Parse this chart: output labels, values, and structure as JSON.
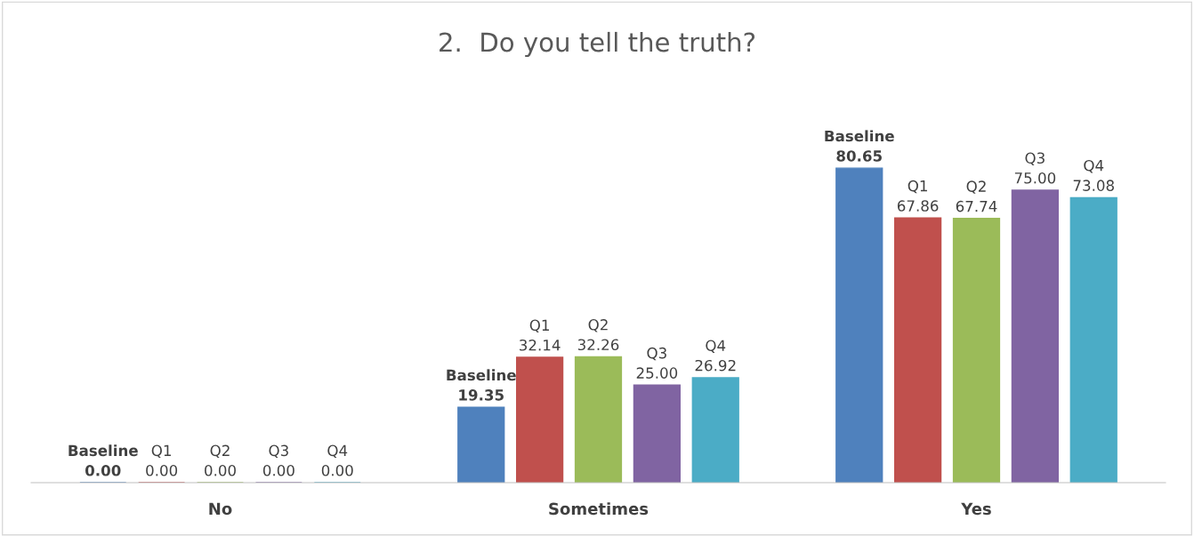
{
  "chart_data": {
    "type": "bar",
    "title": "2.  Do you tell the truth?",
    "categories": [
      "No",
      "Sometimes",
      "Yes"
    ],
    "series": [
      {
        "name": "Baseline",
        "color": "#4f81bd",
        "values": [
          0.0,
          19.35,
          80.65
        ],
        "value_labels": [
          "0.00",
          "19.35",
          "80.65"
        ]
      },
      {
        "name": "Q1",
        "color": "#c0504d",
        "values": [
          0.0,
          32.14,
          67.86
        ],
        "value_labels": [
          "0.00",
          "32.14",
          "67.86"
        ]
      },
      {
        "name": "Q2",
        "color": "#9bbb59",
        "values": [
          0.0,
          32.26,
          67.74
        ],
        "value_labels": [
          "0.00",
          "32.26",
          "67.74"
        ]
      },
      {
        "name": "Q3",
        "color": "#8064a2",
        "values": [
          0.0,
          25.0,
          75.0
        ],
        "value_labels": [
          "0.00",
          "25.00",
          "75.00"
        ]
      },
      {
        "name": "Q4",
        "color": "#4bacc6",
        "values": [
          0.0,
          26.92,
          73.08
        ],
        "value_labels": [
          "0.00",
          "26.92",
          "73.08"
        ]
      }
    ],
    "grid": false,
    "legend": false
  }
}
